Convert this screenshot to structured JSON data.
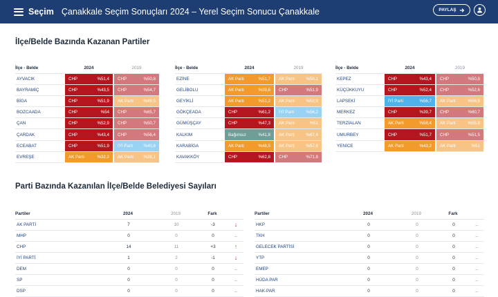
{
  "header": {
    "brand": "Seçim",
    "title": "Çanakkale Seçim Sonuçları 2024 – Yerel Seçim Sonucu Çanakkale",
    "share_label": "PAYLAŞ"
  },
  "colors": {
    "header_bg": "#1d3d73",
    "CHP": "#b3161f",
    "AK Parti": "#f39a2c",
    "İYİ Parti": "#4fb2e8",
    "Bağımsız": "#6e9e97",
    "up": "#3a9a3a",
    "down": "#cc2a2a"
  },
  "district_section": {
    "title": "İlçe/Belde Bazında Kazanan Partiler",
    "columns": {
      "name": "İlçe - Belde",
      "y2024": "2024",
      "y2019": "2019"
    },
    "tables": [
      [
        {
          "name": "AYVACIK",
          "p24": "CHP",
          "v24": "%51,4",
          "p19": "CHP",
          "v19": "%50,8"
        },
        {
          "name": "BAYRAMİÇ",
          "p24": "CHP",
          "v24": "%43,5",
          "p19": "CHP",
          "v19": "%54,7"
        },
        {
          "name": "BİGA",
          "p24": "CHP",
          "v24": "%51,9",
          "p19": "AK Parti",
          "v19": "%49,5"
        },
        {
          "name": "BOZCAADA",
          "p24": "CHP",
          "v24": "%54",
          "p19": "CHP",
          "v19": "%65,7"
        },
        {
          "name": "ÇAN",
          "p24": "CHP",
          "v24": "%52,9",
          "p19": "CHP",
          "v19": "%50,7"
        },
        {
          "name": "ÇARDAK",
          "p24": "CHP",
          "v24": "%43,4",
          "p19": "CHP",
          "v19": "%56,4"
        },
        {
          "name": "ECEABAT",
          "p24": "CHP",
          "v24": "%51,9",
          "p19": "İYİ Parti",
          "v19": "%40,8"
        },
        {
          "name": "EVREŞE",
          "p24": "AK Parti",
          "v24": "%32,2",
          "p19": "AK Parti",
          "v19": "%38,1"
        }
      ],
      [
        {
          "name": "EZİNE",
          "p24": "AK Parti",
          "v24": "%51,7",
          "p19": "AK Parti",
          "v19": "%50,1"
        },
        {
          "name": "GELİBOLU",
          "p24": "AK Parti",
          "v24": "%39,6",
          "p19": "CHP",
          "v19": "%51,9"
        },
        {
          "name": "GEYİKLİ",
          "p24": "AK Parti",
          "v24": "%51,2",
          "p19": "AK Parti",
          "v19": "%52,9"
        },
        {
          "name": "GÖKÇEADA",
          "p24": "CHP",
          "v24": "%61,2",
          "p19": "İYİ Parti",
          "v19": "%56,2"
        },
        {
          "name": "GÜMÜŞÇAY",
          "p24": "CHP",
          "v24": "%47,3",
          "p19": "AK Parti",
          "v19": "%51"
        },
        {
          "name": "KALKIM",
          "p24": "Bağımsız",
          "v24": "%41,8",
          "p19": "AK Parti",
          "v19": "%67,4"
        },
        {
          "name": "KARABİGA",
          "p24": "AK Parti",
          "v24": "%48,5",
          "p19": "AK Parti",
          "v19": "%57,8"
        },
        {
          "name": "KAVAKKÖY",
          "p24": "CHP",
          "v24": "%62,8",
          "p19": "CHP",
          "v19": "%71,8"
        }
      ],
      [
        {
          "name": "KEPEZ",
          "p24": "CHP",
          "v24": "%43,4",
          "p19": "CHP",
          "v19": "%50,8"
        },
        {
          "name": "KÜÇÜKKUYU",
          "p24": "CHP",
          "v24": "%52,4",
          "p19": "CHP",
          "v19": "%52,6"
        },
        {
          "name": "LAPSEKİ",
          "p24": "İYİ Parti",
          "v24": "%56,7",
          "p19": "AK Parti",
          "v19": "%56,6"
        },
        {
          "name": "MERKEZ",
          "p24": "CHP",
          "v24": "%39,7",
          "p19": "CHP",
          "v19": "%60,7"
        },
        {
          "name": "TERZİALAN",
          "p24": "AK Parti",
          "v24": "%58,4",
          "p19": "AK Parti",
          "v19": "%55,8"
        },
        {
          "name": "UMURBEY",
          "p24": "CHP",
          "v24": "%51,7",
          "p19": "CHP",
          "v19": "%51,5"
        },
        {
          "name": "YENİCE",
          "p24": "AK Parti",
          "v24": "%43,2",
          "p19": "AK Parti",
          "v19": "%51"
        }
      ]
    ]
  },
  "party_section": {
    "title": "Parti Bazında Kazanılan İlçe/Belde Belediyesi Sayıları",
    "columns": {
      "party": "Partiler",
      "y2024": "2024",
      "y2019": "2019",
      "diff": "Fark"
    },
    "tables": [
      [
        {
          "name": "AK PARTİ",
          "c24": "7",
          "c19": "10",
          "diff": "-3",
          "trend": "down"
        },
        {
          "name": "MHP",
          "c24": "0",
          "c19": "0",
          "diff": "0",
          "trend": "none"
        },
        {
          "name": "CHP",
          "c24": "14",
          "c19": "11",
          "diff": "+3",
          "trend": "up"
        },
        {
          "name": "İYİ PARTİ",
          "c24": "1",
          "c19": "2",
          "diff": "-1",
          "trend": "down"
        },
        {
          "name": "DEM",
          "c24": "0",
          "c19": "0",
          "diff": "0",
          "trend": "none"
        },
        {
          "name": "SP",
          "c24": "0",
          "c19": "0",
          "diff": "0",
          "trend": "none"
        },
        {
          "name": "DSP",
          "c24": "0",
          "c19": "0",
          "diff": "0",
          "trend": "none"
        }
      ],
      [
        {
          "name": "HKP",
          "c24": "0",
          "c19": "0",
          "diff": "0",
          "trend": "none"
        },
        {
          "name": "TKH",
          "c24": "0",
          "c19": "0",
          "diff": "0",
          "trend": "none"
        },
        {
          "name": "GELECEK PARTİSİ",
          "c24": "0",
          "c19": "0",
          "diff": "0",
          "trend": "none"
        },
        {
          "name": "YTP",
          "c24": "0",
          "c19": "0",
          "diff": "0",
          "trend": "none"
        },
        {
          "name": "EMEP",
          "c24": "0",
          "c19": "0",
          "diff": "0",
          "trend": "none"
        },
        {
          "name": "HÜDA PAR",
          "c24": "0",
          "c19": "0",
          "diff": "0",
          "trend": "none"
        },
        {
          "name": "HAK-PAR",
          "c24": "0",
          "c19": "0",
          "diff": "0",
          "trend": "none"
        }
      ]
    ]
  }
}
